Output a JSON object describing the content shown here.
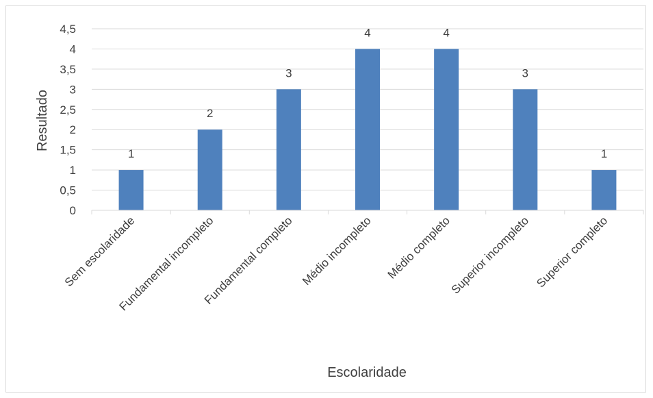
{
  "chart_data": {
    "type": "bar",
    "categories": [
      "Sem escolaridade",
      "Fundamental incompleto",
      "Fundamental completo",
      "Médio incompleto",
      "Médio completo",
      "Superior incompleto",
      "Superior completo"
    ],
    "values": [
      1,
      2,
      3,
      4,
      4,
      3,
      1
    ],
    "data_labels": [
      "1",
      "2",
      "3",
      "4",
      "4",
      "3",
      "1"
    ],
    "title": "",
    "xlabel": "Escolaridade",
    "ylabel": "Resultado",
    "ylim": [
      0,
      4.5
    ],
    "yticks": [
      "0",
      "0,5",
      "1",
      "1,5",
      "2",
      "2,5",
      "3",
      "3,5",
      "4",
      "4,5"
    ],
    "grid": true,
    "legend": "none",
    "bar_color": "#4f81bd",
    "grid_color": "#d9d9d9"
  }
}
